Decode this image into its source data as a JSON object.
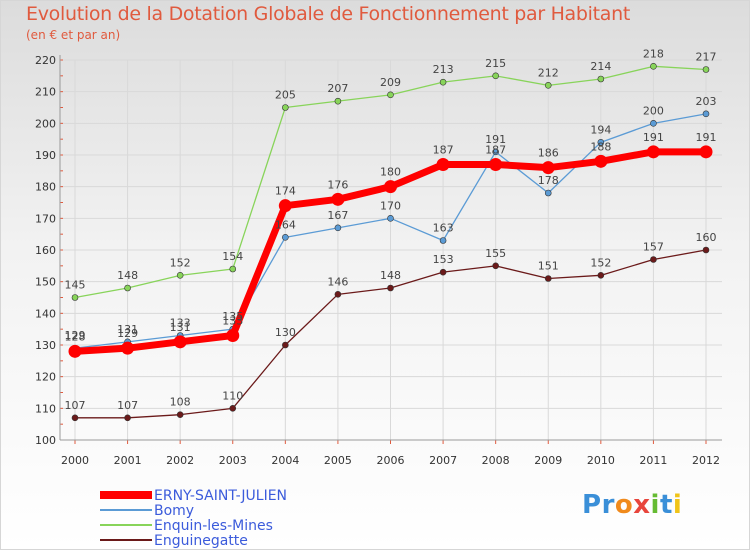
{
  "chart_data": {
    "type": "line",
    "title": "Evolution de la Dotation Globale de Fonctionnement par Habitant",
    "subtitle": "(en € et par an)",
    "xlabel": "",
    "ylabel": "",
    "ylim": [
      100,
      220
    ],
    "yticks": [
      100,
      110,
      120,
      130,
      140,
      150,
      160,
      170,
      180,
      190,
      200,
      210,
      220
    ],
    "x": [
      "2000",
      "2001",
      "2002",
      "2003",
      "2004",
      "2005",
      "2006",
      "2007",
      "2008",
      "2009",
      "2010",
      "2011",
      "2012"
    ],
    "grid": true,
    "legend_position": "bottom-left",
    "series": [
      {
        "name": "Enguinegatte",
        "color": "#6b1a1a",
        "values": [
          107,
          107,
          108,
          110,
          130,
          146,
          148,
          153,
          155,
          151,
          152,
          157,
          160
        ]
      },
      {
        "name": "Enquin-les-Mines",
        "color": "#88d45a",
        "values": [
          145,
          148,
          152,
          154,
          205,
          207,
          209,
          213,
          215,
          212,
          214,
          218,
          217
        ]
      },
      {
        "name": "Bomy",
        "color": "#5b9bd5",
        "values": [
          129,
          131,
          133,
          135,
          164,
          167,
          170,
          163,
          191,
          178,
          194,
          200,
          203
        ]
      },
      {
        "name": "ERNY-SAINT-JULIEN",
        "color": "#ff0000",
        "values": [
          128,
          129,
          131,
          133,
          174,
          176,
          180,
          187,
          187,
          186,
          188,
          191,
          191
        ]
      }
    ],
    "legend_order": [
      "ERNY-SAINT-JULIEN",
      "Bomy",
      "Enquin-les-Mines",
      "Enguinegatte"
    ]
  },
  "branding": {
    "logo_text": "Proxiti",
    "logo_letters": [
      {
        "ch": "P",
        "color": "#3a8fd8"
      },
      {
        "ch": "r",
        "color": "#3a8fd8"
      },
      {
        "ch": "o",
        "color": "#f08a1c"
      },
      {
        "ch": "x",
        "color": "#e8453c"
      },
      {
        "ch": "i",
        "color": "#66bb33"
      },
      {
        "ch": "t",
        "color": "#3a8fd8"
      },
      {
        "ch": "i",
        "color": "#f0c419"
      }
    ]
  }
}
